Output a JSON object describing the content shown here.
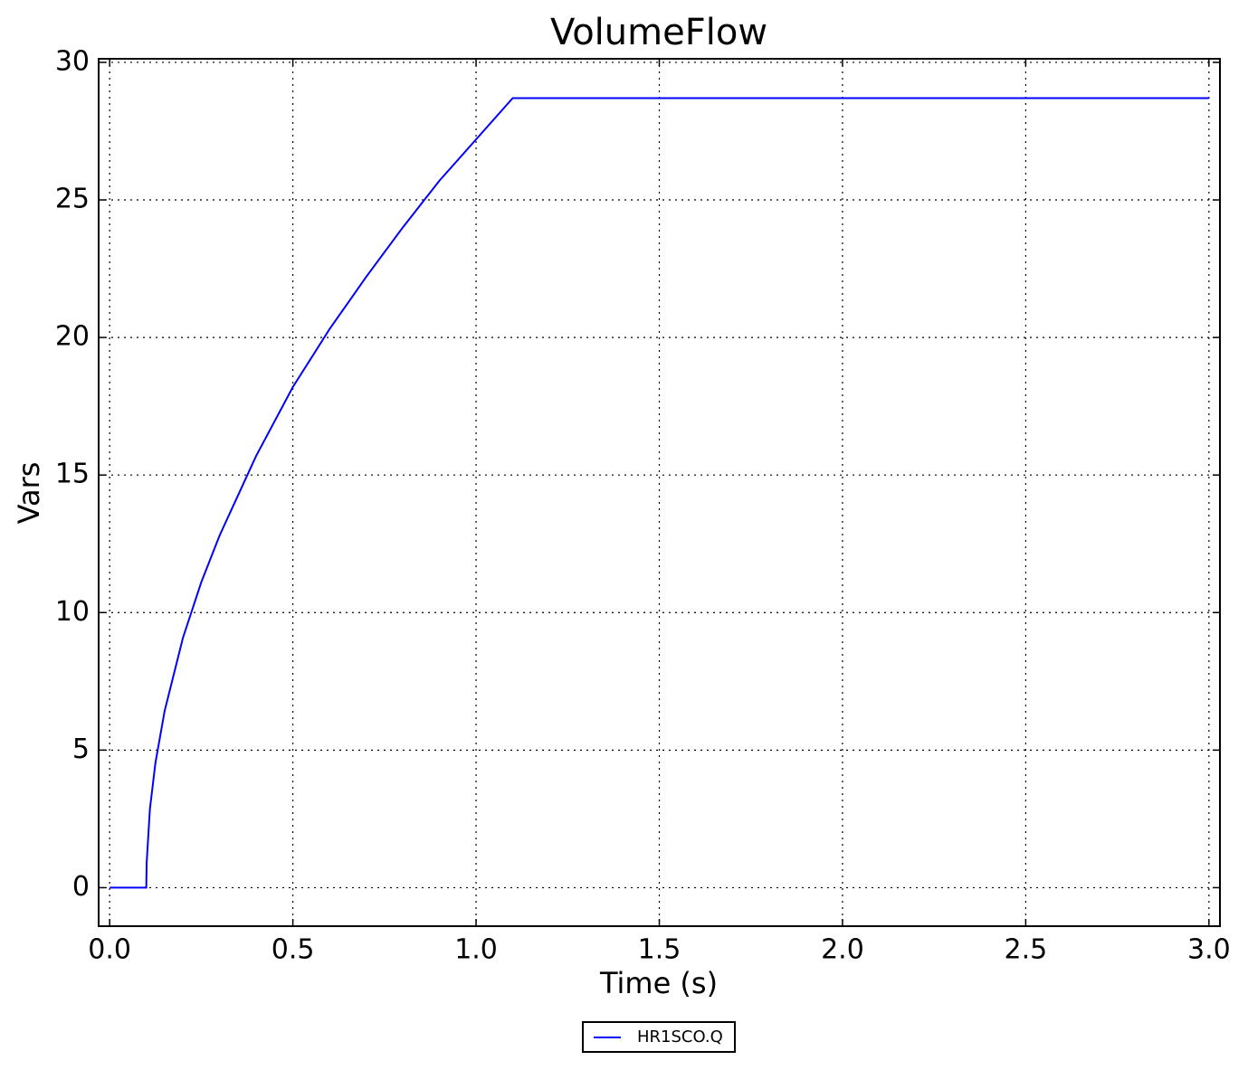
{
  "chart_data": {
    "type": "line",
    "title": "VolumeFlow",
    "xlabel": "Time (s)",
    "ylabel": "Vars",
    "x": [
      0,
      0.1,
      0.101,
      0.11,
      0.125,
      0.15,
      0.2,
      0.25,
      0.3,
      0.4,
      0.5,
      0.6,
      0.7,
      0.8,
      0.9,
      1.0,
      1.1,
      3.0
    ],
    "series": [
      {
        "name": "HR1SCO.Q",
        "color": "#0000ff",
        "values": [
          0,
          0,
          0.9,
          2.87,
          4.54,
          6.42,
          9.08,
          11.1,
          12.8,
          15.7,
          18.2,
          20.3,
          22.2,
          24.0,
          25.7,
          27.2,
          28.7,
          28.7
        ]
      }
    ],
    "xlim": [
      -0.03,
      3.03
    ],
    "ylim": [
      -1.4,
      30.13
    ],
    "xticks": [
      {
        "value": 0,
        "label": "0.0"
      },
      0.5,
      {
        "value": 1,
        "label": "1.0"
      },
      1.5,
      {
        "value": 2,
        "label": "2.0"
      },
      2.5,
      {
        "value": 3,
        "label": "3.0"
      }
    ],
    "yticks": [
      0,
      5,
      10,
      15,
      20,
      25,
      30
    ],
    "grid": true,
    "legend": "bottom"
  }
}
